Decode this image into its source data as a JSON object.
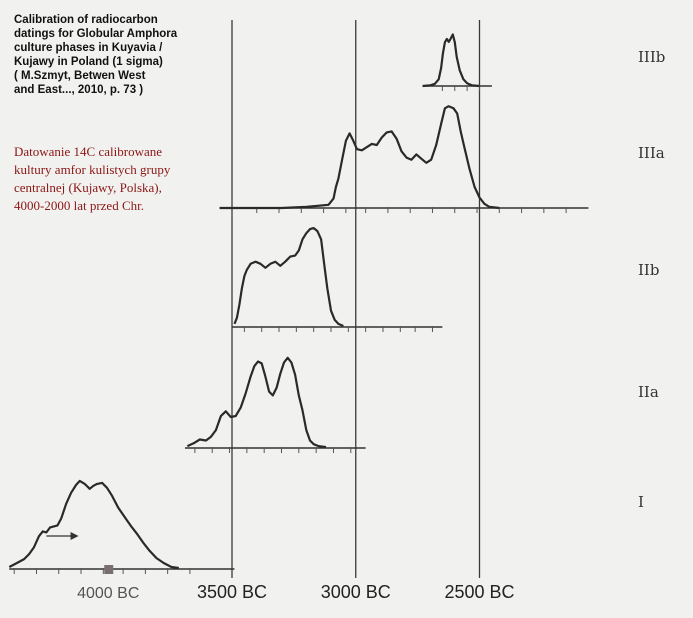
{
  "caption_en": [
    "Calibration of radiocarbon",
    "datings for Globular Amphora",
    "culture phases in Kuyavia /",
    "Kujawy in Poland (1 sigma)",
    "( M.Szmyt, Betwen West",
    "and East..., 2010, p. 73 )"
  ],
  "caption_pl": [
    "Datowanie 14C calibrowane",
    "kultury amfor kulistych grupy",
    "centralnej (Kujawy, Polska),",
    "4000-2000 lat przed Chr."
  ],
  "chart_data": {
    "type": "area",
    "x_axis_unit": "years BC",
    "x_reference_lines": [
      3500,
      3000,
      2500
    ],
    "x_tick_labels": [
      {
        "label": "4000 BC",
        "x": 4000,
        "style": "dim"
      },
      {
        "label": "3500 BC",
        "x": 3500
      },
      {
        "label": "3000 BC",
        "x": 3000
      },
      {
        "label": "2500 BC",
        "x": 2500
      }
    ],
    "marker": {
      "x": 4000,
      "shape": "square"
    },
    "arrow": {
      "from": 4250,
      "to": 4120
    },
    "series": [
      {
        "name": "I",
        "baseline": 0,
        "axis_range": [
          4400,
          3490
        ],
        "ticks": [
          4380,
          4290,
          4200,
          4110,
          4020,
          3940,
          3850,
          3760,
          3670
        ],
        "points": [
          [
            4400,
            0.02
          ],
          [
            4370,
            0.06
          ],
          [
            4340,
            0.1
          ],
          [
            4320,
            0.15
          ],
          [
            4300,
            0.22
          ],
          [
            4280,
            0.33
          ],
          [
            4265,
            0.38
          ],
          [
            4250,
            0.37
          ],
          [
            4235,
            0.42
          ],
          [
            4220,
            0.43
          ],
          [
            4205,
            0.44
          ],
          [
            4190,
            0.51
          ],
          [
            4170,
            0.66
          ],
          [
            4150,
            0.77
          ],
          [
            4130,
            0.85
          ],
          [
            4115,
            0.89
          ],
          [
            4095,
            0.86
          ],
          [
            4075,
            0.81
          ],
          [
            4060,
            0.84
          ],
          [
            4045,
            0.86
          ],
          [
            4025,
            0.87
          ],
          [
            4005,
            0.82
          ],
          [
            3985,
            0.74
          ],
          [
            3960,
            0.62
          ],
          [
            3935,
            0.53
          ],
          [
            3910,
            0.44
          ],
          [
            3885,
            0.36
          ],
          [
            3860,
            0.27
          ],
          [
            3835,
            0.19
          ],
          [
            3805,
            0.11
          ],
          [
            3775,
            0.06
          ],
          [
            3745,
            0.02
          ],
          [
            3715,
            0.01
          ]
        ]
      },
      {
        "name": "IIa",
        "baseline": 0,
        "axis_range": [
          3690,
          2960
        ],
        "ticks": [
          3650,
          3580,
          3510,
          3440,
          3370,
          3300,
          3230,
          3160,
          3090,
          3020
        ],
        "points": [
          [
            3680,
            0.02
          ],
          [
            3655,
            0.05
          ],
          [
            3630,
            0.09
          ],
          [
            3605,
            0.08
          ],
          [
            3585,
            0.12
          ],
          [
            3565,
            0.19
          ],
          [
            3545,
            0.34
          ],
          [
            3525,
            0.39
          ],
          [
            3505,
            0.33
          ],
          [
            3485,
            0.34
          ],
          [
            3465,
            0.43
          ],
          [
            3445,
            0.58
          ],
          [
            3425,
            0.76
          ],
          [
            3410,
            0.87
          ],
          [
            3395,
            0.92
          ],
          [
            3380,
            0.9
          ],
          [
            3365,
            0.76
          ],
          [
            3350,
            0.6
          ],
          [
            3335,
            0.56
          ],
          [
            3320,
            0.64
          ],
          [
            3305,
            0.79
          ],
          [
            3290,
            0.91
          ],
          [
            3275,
            0.96
          ],
          [
            3260,
            0.91
          ],
          [
            3245,
            0.78
          ],
          [
            3230,
            0.56
          ],
          [
            3215,
            0.4
          ],
          [
            3200,
            0.19
          ],
          [
            3185,
            0.08
          ],
          [
            3170,
            0.04
          ],
          [
            3150,
            0.02
          ],
          [
            3120,
            0.01
          ]
        ]
      },
      {
        "name": "IIb",
        "baseline": 0,
        "axis_range": [
          3500,
          2650
        ],
        "ticks": [
          3450,
          3380,
          3310,
          3240,
          3170,
          3100,
          3030,
          2960,
          2890,
          2820,
          2760,
          2690
        ],
        "points": [
          [
            3490,
            0.03
          ],
          [
            3480,
            0.09
          ],
          [
            3470,
            0.22
          ],
          [
            3460,
            0.38
          ],
          [
            3450,
            0.5
          ],
          [
            3440,
            0.56
          ],
          [
            3425,
            0.62
          ],
          [
            3405,
            0.64
          ],
          [
            3385,
            0.62
          ],
          [
            3365,
            0.58
          ],
          [
            3345,
            0.62
          ],
          [
            3325,
            0.64
          ],
          [
            3305,
            0.6
          ],
          [
            3285,
            0.64
          ],
          [
            3265,
            0.69
          ],
          [
            3245,
            0.7
          ],
          [
            3230,
            0.75
          ],
          [
            3215,
            0.86
          ],
          [
            3200,
            0.92
          ],
          [
            3185,
            0.96
          ],
          [
            3170,
            0.97
          ],
          [
            3155,
            0.94
          ],
          [
            3140,
            0.86
          ],
          [
            3125,
            0.57
          ],
          [
            3115,
            0.38
          ],
          [
            3100,
            0.16
          ],
          [
            3085,
            0.07
          ],
          [
            3070,
            0.03
          ],
          [
            3050,
            0.01
          ]
        ]
      },
      {
        "name": "IIIa",
        "baseline": 0,
        "axis_range": [
          3550,
          2060
        ],
        "ticks": [
          3400,
          3310,
          3220,
          3130,
          3040,
          2960,
          2870,
          2780,
          2690,
          2600,
          2510,
          2420,
          2330,
          2240,
          2150
        ],
        "points": [
          [
            3550,
            0.0
          ],
          [
            3300,
            0.0
          ],
          [
            3200,
            0.01
          ],
          [
            3110,
            0.03
          ],
          [
            3090,
            0.09
          ],
          [
            3080,
            0.2
          ],
          [
            3070,
            0.28
          ],
          [
            3055,
            0.46
          ],
          [
            3040,
            0.64
          ],
          [
            3025,
            0.71
          ],
          [
            3010,
            0.64
          ],
          [
            2995,
            0.56
          ],
          [
            2975,
            0.55
          ],
          [
            2955,
            0.58
          ],
          [
            2935,
            0.61
          ],
          [
            2915,
            0.6
          ],
          [
            2895,
            0.67
          ],
          [
            2875,
            0.72
          ],
          [
            2855,
            0.73
          ],
          [
            2835,
            0.66
          ],
          [
            2815,
            0.54
          ],
          [
            2795,
            0.48
          ],
          [
            2775,
            0.46
          ],
          [
            2755,
            0.51
          ],
          [
            2735,
            0.47
          ],
          [
            2715,
            0.43
          ],
          [
            2695,
            0.46
          ],
          [
            2675,
            0.6
          ],
          [
            2655,
            0.8
          ],
          [
            2640,
            0.95
          ],
          [
            2625,
            0.97
          ],
          [
            2605,
            0.95
          ],
          [
            2590,
            0.9
          ],
          [
            2575,
            0.72
          ],
          [
            2560,
            0.57
          ],
          [
            2540,
            0.37
          ],
          [
            2520,
            0.2
          ],
          [
            2500,
            0.1
          ],
          [
            2480,
            0.04
          ],
          [
            2460,
            0.01
          ],
          [
            2420,
            0.0
          ]
        ]
      },
      {
        "name": "IIIb",
        "baseline": 0,
        "axis_range": [
          2730,
          2450
        ],
        "ticks": [
          2650,
          2600,
          2550,
          2500
        ],
        "points": [
          [
            2730,
            0.0
          ],
          [
            2700,
            0.01
          ],
          [
            2680,
            0.04
          ],
          [
            2665,
            0.12
          ],
          [
            2655,
            0.32
          ],
          [
            2648,
            0.58
          ],
          [
            2640,
            0.78
          ],
          [
            2632,
            0.84
          ],
          [
            2624,
            0.79
          ],
          [
            2616,
            0.85
          ],
          [
            2608,
            0.92
          ],
          [
            2600,
            0.78
          ],
          [
            2592,
            0.52
          ],
          [
            2580,
            0.28
          ],
          [
            2565,
            0.12
          ],
          [
            2550,
            0.05
          ],
          [
            2530,
            0.01
          ],
          [
            2500,
            0.0
          ]
        ]
      }
    ]
  }
}
